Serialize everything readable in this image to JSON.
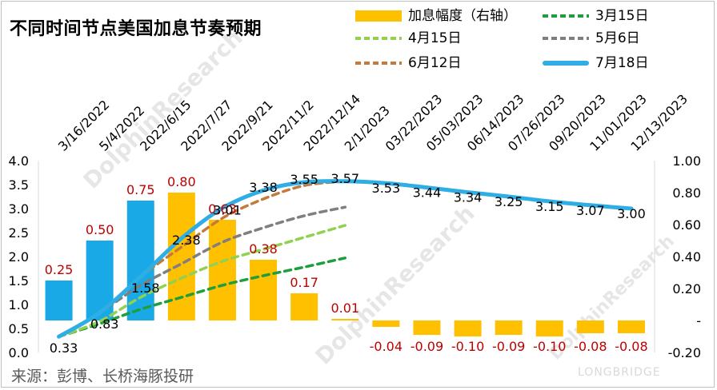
{
  "title": "不同时间节点美国加息节奏预期",
  "source": "来源：彭博、长桥海豚投研",
  "watermark": {
    "brand": "DolphinResearch",
    "brand2": "LONGBRIDGE"
  },
  "colors": {
    "bar_past": "#19a9e6",
    "bar_future": "#ffc000",
    "neg_label": "#c00000",
    "mar15": "#1e9e3c",
    "apr15": "#92d050",
    "may6": "#7f7f7f",
    "jun12": "#c47a3c",
    "jul18": "#2eaee5"
  },
  "chart_data": {
    "type": "bar+line",
    "categories": [
      "3/16/2022",
      "5/4/2022",
      "2022/6/15",
      "2022/7/27",
      "2022/9/21",
      "2022/11/2",
      "2022/12/14",
      "2/1/2023",
      "03/22/2023",
      "05/03/2023",
      "06/14/2023",
      "07/26/2023",
      "09/20/2023",
      "11/01/2023",
      "12/13/2023"
    ],
    "y_left": {
      "min": 0,
      "max": 4,
      "ticks": [
        "0.0",
        "0.5",
        "1.0",
        "1.5",
        "2.0",
        "2.5",
        "3.0",
        "3.5",
        "4.0"
      ]
    },
    "y_right": {
      "min": -0.2,
      "max": 1.0,
      "ticks": [
        "-0.20",
        "-",
        "0.20",
        "0.40",
        "0.60",
        "0.80",
        "1.00"
      ]
    },
    "bar_series": {
      "name": "加息幅度（右轴）",
      "axis": "right",
      "values": [
        0.25,
        0.5,
        0.75,
        0.8,
        0.63,
        0.38,
        0.17,
        0.01,
        -0.04,
        -0.09,
        -0.1,
        -0.09,
        -0.1,
        -0.08,
        -0.08
      ],
      "labels": [
        "0.25",
        "0.50",
        "0.75",
        "0.80",
        "0.63",
        "0.38",
        "0.17",
        "0.01",
        "-0.04",
        "-0.09",
        "-0.10",
        "-0.09",
        "-0.10",
        "-0.08",
        "-0.08"
      ],
      "past_count": 3
    },
    "line_series": [
      {
        "name": "3月15日",
        "style": "dashed",
        "color_key": "mar15",
        "values": [
          0.33,
          0.6,
          0.9,
          1.15,
          1.4,
          1.6,
          1.78,
          1.97,
          null,
          null,
          null,
          null,
          null,
          null,
          null
        ]
      },
      {
        "name": "4月15日",
        "style": "dashed",
        "color_key": "apr15",
        "values": [
          0.33,
          0.65,
          1.15,
          1.55,
          1.9,
          2.15,
          2.4,
          2.65,
          null,
          null,
          null,
          null,
          null,
          null,
          null
        ]
      },
      {
        "name": "5月6日",
        "style": "dashed",
        "color_key": "may6",
        "values": [
          0.33,
          0.83,
          1.4,
          1.85,
          2.3,
          2.6,
          2.85,
          3.03,
          null,
          null,
          null,
          null,
          null,
          null,
          null
        ]
      },
      {
        "name": "6月12日",
        "style": "dashed",
        "color_key": "jun12",
        "values": [
          0.33,
          0.83,
          1.58,
          2.2,
          2.8,
          3.2,
          3.48,
          3.57,
          null,
          null,
          null,
          null,
          null,
          null,
          null
        ]
      },
      {
        "name": "7月18日",
        "style": "solid",
        "color_key": "jul18",
        "values": [
          0.33,
          0.83,
          1.58,
          2.38,
          3.01,
          3.38,
          3.55,
          3.57,
          3.53,
          3.44,
          3.34,
          3.25,
          3.15,
          3.07,
          3.0
        ],
        "labels": [
          "0.33",
          "0.83",
          "1.58",
          "2.38",
          "3.01",
          "3.38",
          "3.55",
          "3.57",
          "3.53",
          "3.44",
          "3.34",
          "3.25",
          "3.15",
          "3.07",
          "3.00"
        ]
      }
    ],
    "legend_position": "top-right",
    "grid": false
  }
}
